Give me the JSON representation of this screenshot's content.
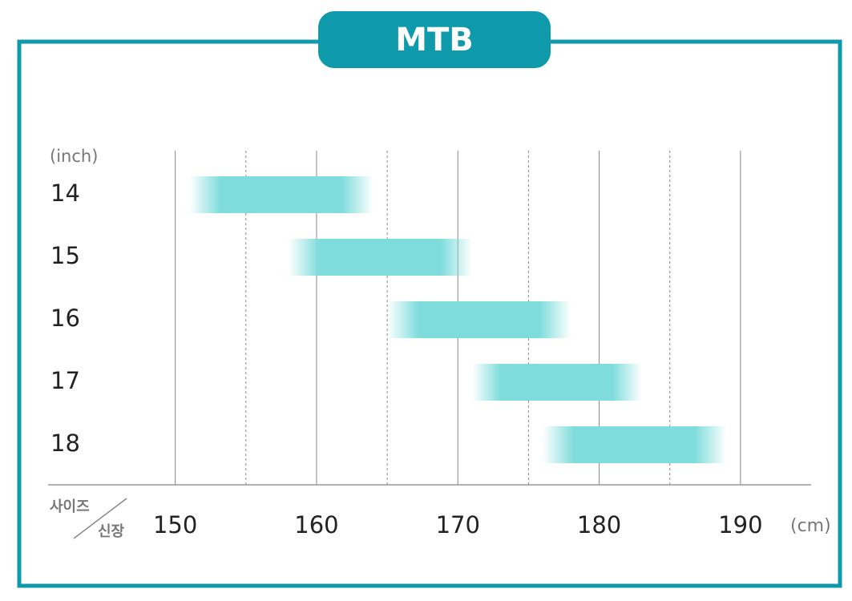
{
  "chart_data": {
    "type": "range",
    "title": "MTB",
    "y_label": "(inch)",
    "x_unit": "(cm)",
    "corner_top": "사이즈",
    "corner_bottom": "신장",
    "categories": [
      "14",
      "15",
      "16",
      "17",
      "18"
    ],
    "starts": [
      151,
      158,
      165,
      171,
      176
    ],
    "ends": [
      164,
      171,
      178,
      183,
      189
    ],
    "color": "#7fdcdc",
    "xlim": [
      141,
      195
    ],
    "xticks": [
      150,
      160,
      170,
      180,
      190
    ],
    "xminorticks": [
      155,
      165,
      175,
      185
    ],
    "grid": true
  }
}
